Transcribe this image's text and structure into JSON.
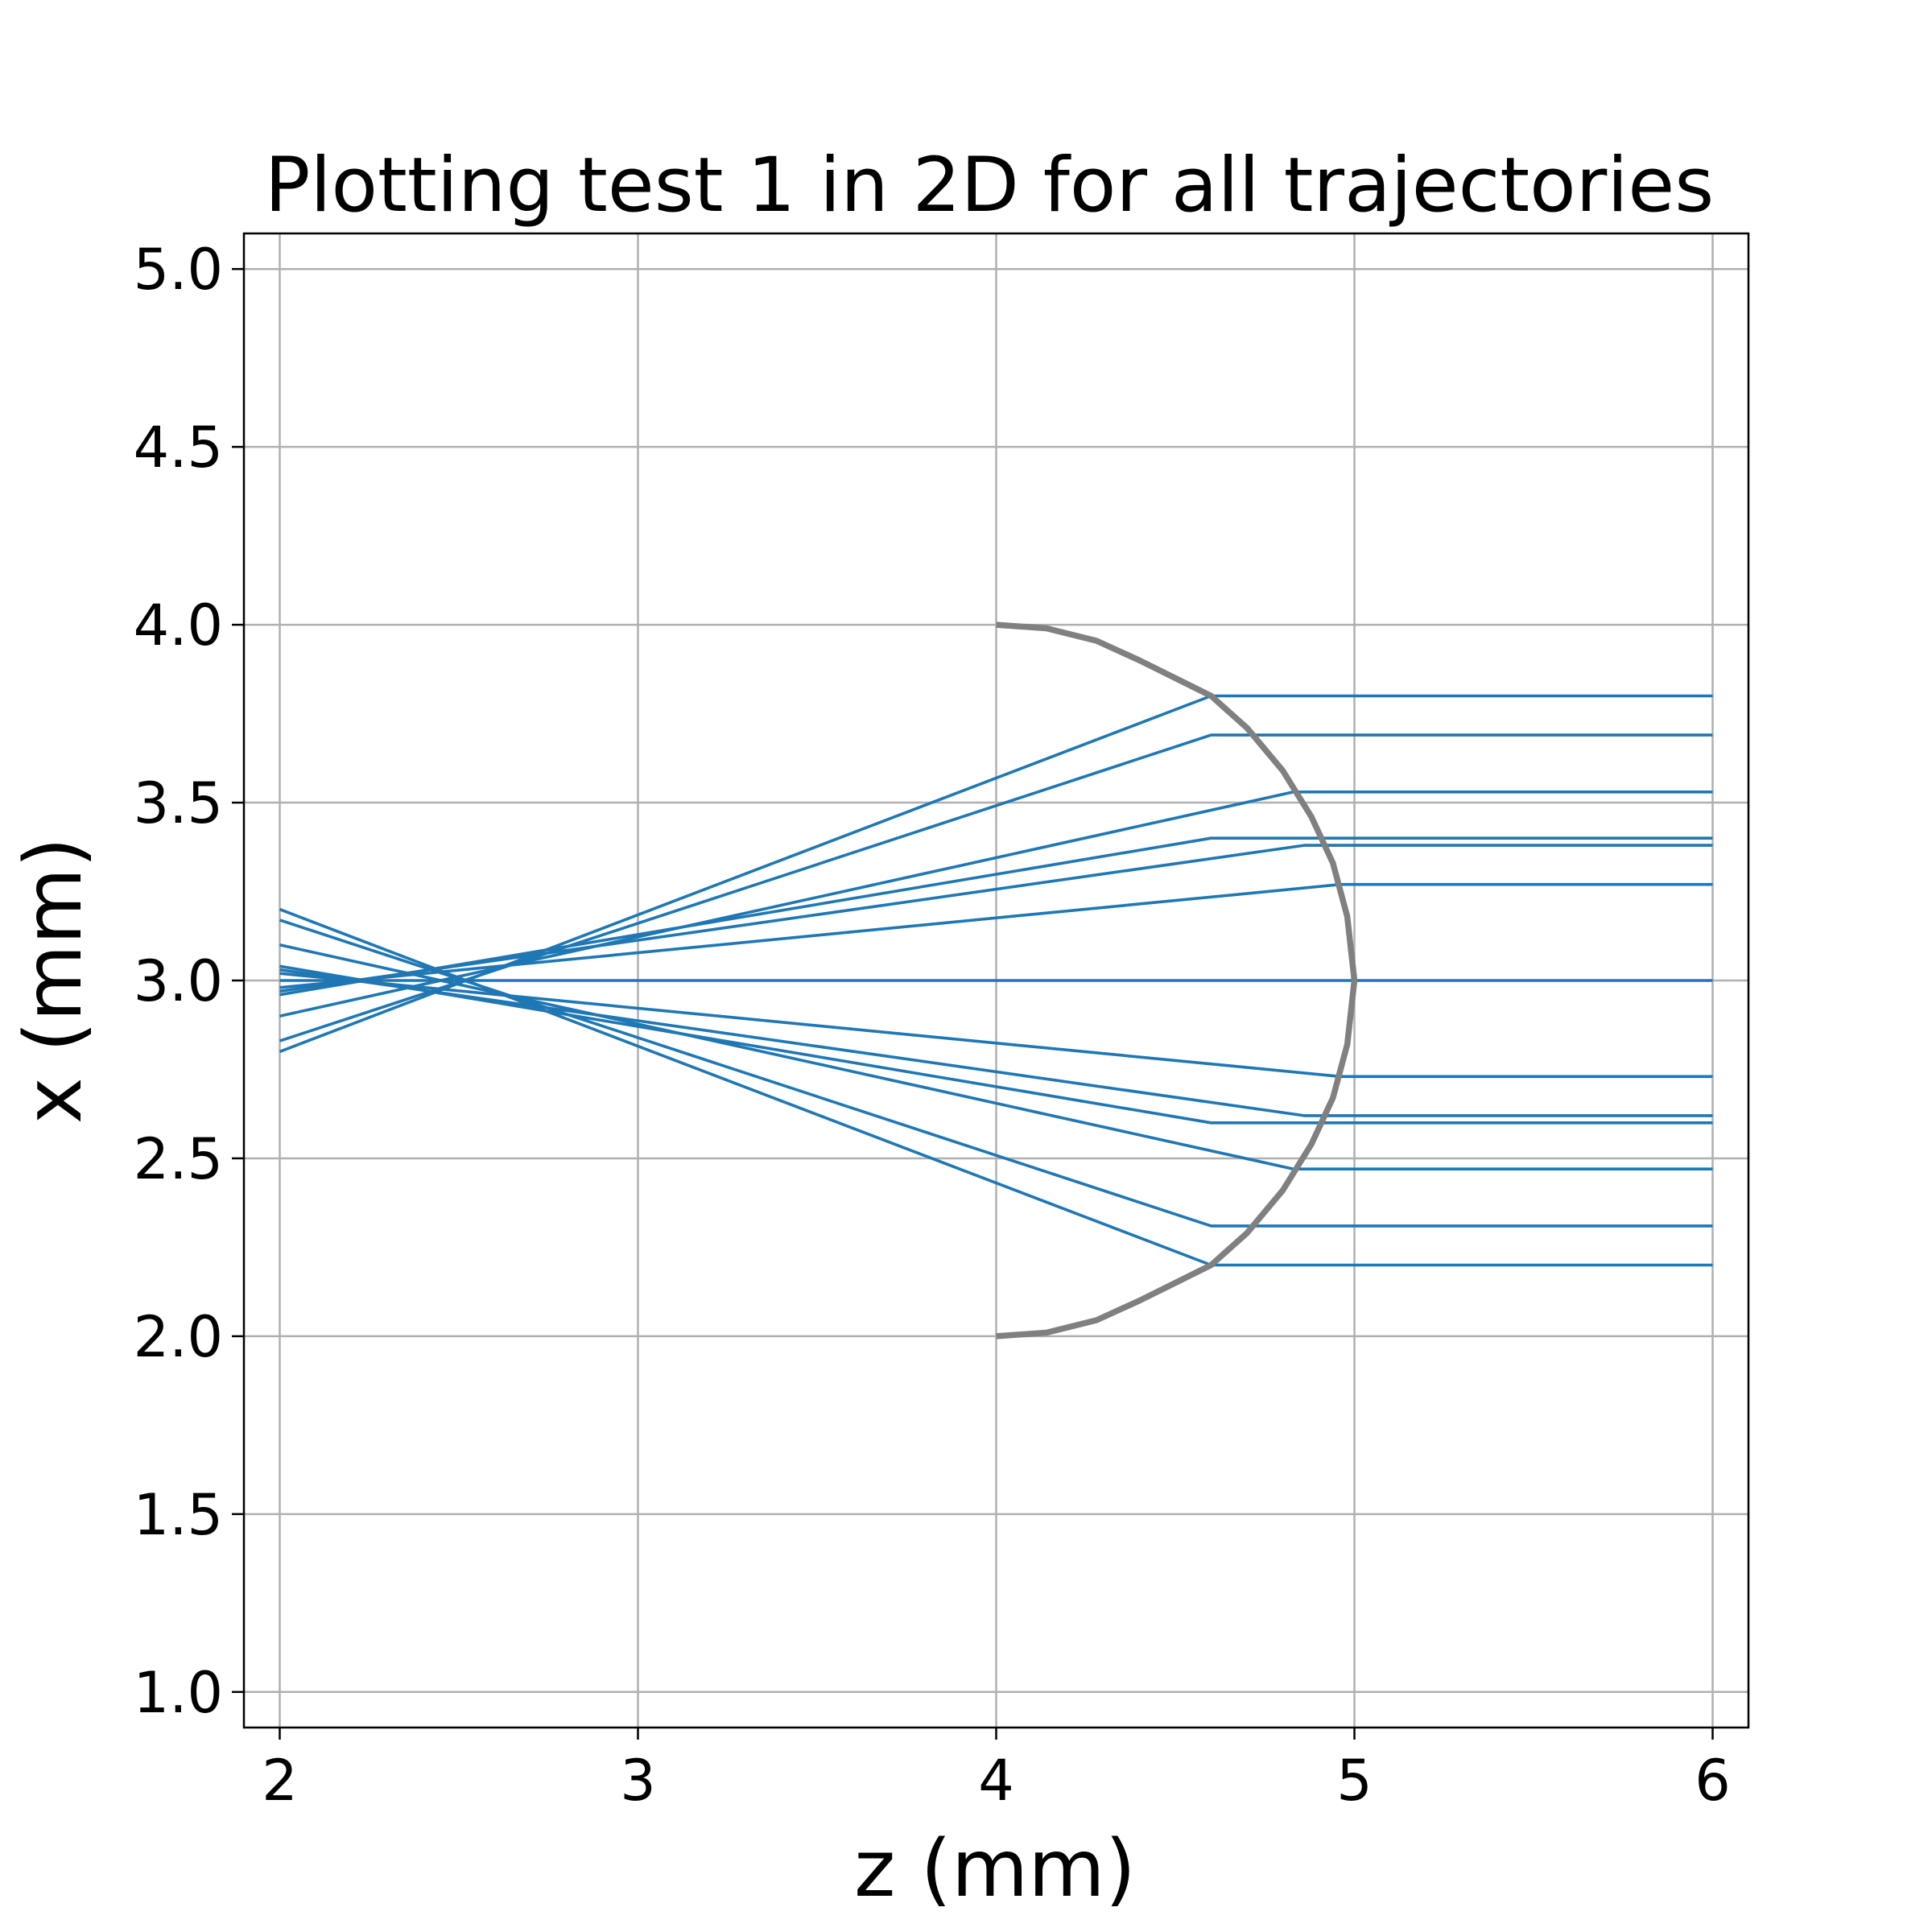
{
  "chart_data": {
    "type": "line",
    "title": "Plotting test 1 in 2D for all trajectories",
    "xlabel": "z (mm)",
    "ylabel": "x (mm)",
    "xlim": [
      1.9,
      6.1
    ],
    "ylim": [
      0.9,
      5.1
    ],
    "xticks": [
      2,
      3,
      4,
      5,
      6
    ],
    "xtick_labels": [
      "2",
      "3",
      "4",
      "5",
      "6"
    ],
    "yticks": [
      1.0,
      1.5,
      2.0,
      2.5,
      3.0,
      3.5,
      4.0,
      4.5,
      5.0
    ],
    "ytick_labels": [
      "1.0",
      "1.5",
      "2.0",
      "2.5",
      "3.0",
      "3.5",
      "4.0",
      "4.5",
      "5.0"
    ],
    "grid": true,
    "ray_color": "#1f77b4",
    "lens_color": "#808080",
    "lens": {
      "name": "lens surface",
      "x": [
        4.0,
        4.14,
        4.28,
        4.4,
        4.5,
        4.6,
        4.7,
        4.8,
        4.88,
        4.94,
        4.98,
        5.0,
        4.98,
        4.94,
        4.88,
        4.8,
        4.7,
        4.6,
        4.5,
        4.4,
        4.28,
        4.14,
        4.0
      ],
      "y": [
        4.0,
        3.99,
        3.955,
        3.9,
        3.85,
        3.8,
        3.71,
        3.59,
        3.46,
        3.33,
        3.18,
        3.0,
        2.82,
        2.67,
        2.54,
        2.41,
        2.29,
        2.2,
        2.15,
        2.1,
        2.045,
        2.01,
        2.0
      ]
    },
    "rays": [
      {
        "x": [
          2.0,
          4.6,
          6.0
        ],
        "y": [
          2.8,
          3.8,
          3.8
        ]
      },
      {
        "x": [
          2.0,
          4.6,
          6.0
        ],
        "y": [
          2.83,
          3.69,
          3.69
        ]
      },
      {
        "x": [
          2.0,
          4.83,
          6.0
        ],
        "y": [
          2.9,
          3.53,
          3.53
        ]
      },
      {
        "x": [
          2.0,
          4.6,
          6.0
        ],
        "y": [
          2.96,
          3.4,
          3.4
        ]
      },
      {
        "x": [
          2.0,
          4.86,
          6.0
        ],
        "y": [
          2.97,
          3.38,
          3.38
        ]
      },
      {
        "x": [
          2.0,
          4.96,
          6.0
        ],
        "y": [
          2.98,
          3.27,
          3.27
        ]
      },
      {
        "x": [
          2.0,
          5.0,
          6.0
        ],
        "y": [
          3.0,
          3.0,
          3.0
        ]
      },
      {
        "x": [
          2.0,
          4.96,
          6.0
        ],
        "y": [
          3.02,
          2.73,
          2.73
        ]
      },
      {
        "x": [
          2.0,
          4.86,
          6.0
        ],
        "y": [
          3.03,
          2.62,
          2.62
        ]
      },
      {
        "x": [
          2.0,
          4.6,
          6.0
        ],
        "y": [
          3.04,
          2.6,
          2.6
        ]
      },
      {
        "x": [
          2.0,
          4.83,
          6.0
        ],
        "y": [
          3.1,
          2.47,
          2.47
        ]
      },
      {
        "x": [
          2.0,
          4.6,
          6.0
        ],
        "y": [
          3.17,
          2.31,
          2.31
        ]
      },
      {
        "x": [
          2.0,
          4.6,
          6.0
        ],
        "y": [
          3.2,
          2.2,
          2.2
        ]
      }
    ]
  }
}
